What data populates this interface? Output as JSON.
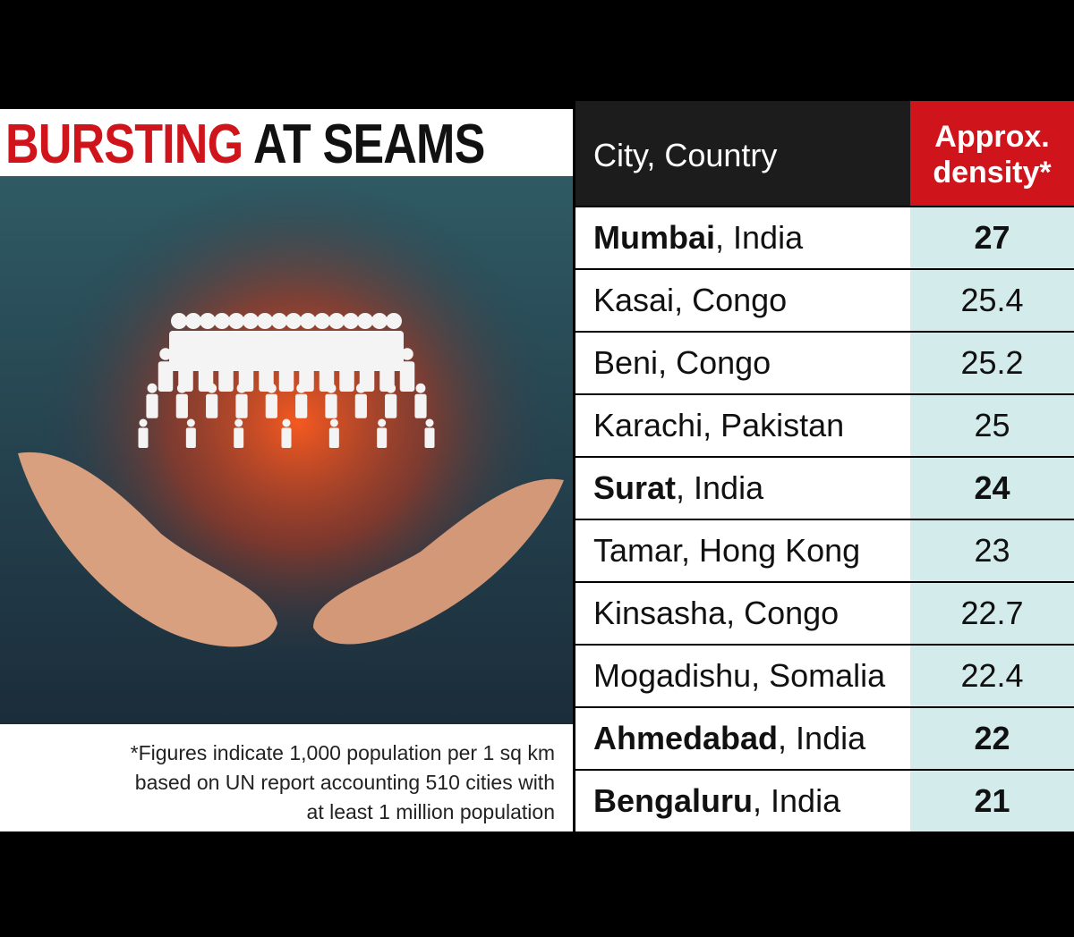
{
  "title": {
    "red": "BURSTING",
    "black": "AT SEAMS"
  },
  "footnote": [
    "*Figures indicate 1,000 population per 1 sq km",
    "based on UN report accounting 510 cities with",
    "at least 1 million population"
  ],
  "table": {
    "header": {
      "city": "City, Country",
      "density": [
        "Approx.",
        "density*"
      ]
    },
    "rows": [
      {
        "city": "Mumbai",
        "country": ", India",
        "density": 27,
        "bold": true
      },
      {
        "city": "Kasai",
        "country": ", Congo",
        "density": 25.4,
        "bold": false
      },
      {
        "city": "Beni",
        "country": ", Congo",
        "density": 25.2,
        "bold": false
      },
      {
        "city": "Karachi",
        "country": ", Pakistan",
        "density": 25,
        "bold": false
      },
      {
        "city": "Surat",
        "country": ", India",
        "density": 24,
        "bold": true
      },
      {
        "city": "Tamar",
        "country": ", Hong Kong",
        "density": 23,
        "bold": false
      },
      {
        "city": "Kinsasha",
        "country": ", Congo",
        "density": 22.7,
        "bold": false
      },
      {
        "city": "Mogadishu",
        "country": ", Somalia",
        "density": 22.4,
        "bold": false
      },
      {
        "city": "Ahmedabad",
        "country": ", India",
        "density": 22,
        "bold": true
      },
      {
        "city": "Bengaluru",
        "country": ", India",
        "density": 21,
        "bold": true
      }
    ]
  }
}
